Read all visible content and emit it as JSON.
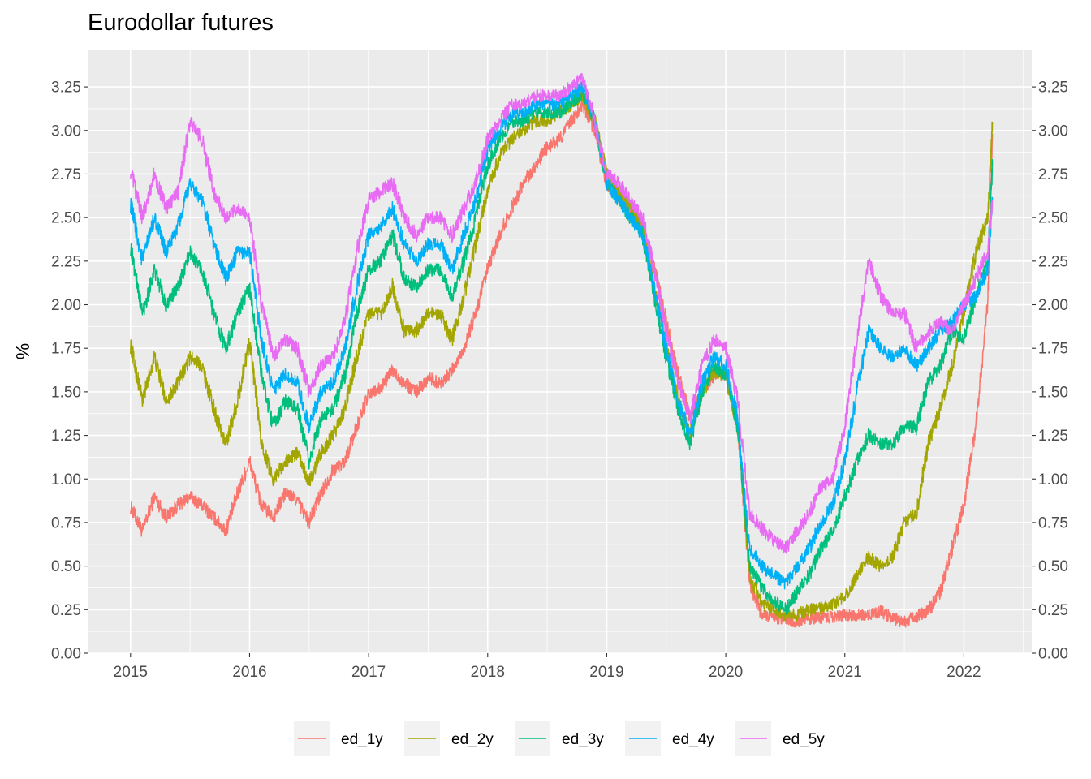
{
  "chart_data": {
    "type": "line",
    "title": "Eurodollar futures",
    "xlabel": "",
    "ylabel": "%",
    "x_ticks": [
      "2015",
      "2016",
      "2017",
      "2018",
      "2019",
      "2020",
      "2021",
      "2022"
    ],
    "y_ticks": [
      "0.00",
      "0.25",
      "0.50",
      "0.75",
      "1.00",
      "1.25",
      "1.50",
      "1.75",
      "2.00",
      "2.25",
      "2.50",
      "2.75",
      "3.00",
      "3.25"
    ],
    "xlim": [
      2014.64,
      2022.57
    ],
    "ylim": [
      0,
      3.46
    ],
    "grid": true,
    "secondary_y_axis": true,
    "legend_position": "bottom",
    "x": [
      2015.0,
      2015.1,
      2015.2,
      2015.3,
      2015.4,
      2015.5,
      2015.6,
      2015.7,
      2015.8,
      2015.9,
      2016.0,
      2016.1,
      2016.2,
      2016.3,
      2016.4,
      2016.5,
      2016.6,
      2016.7,
      2016.8,
      2016.9,
      2017.0,
      2017.1,
      2017.2,
      2017.3,
      2017.4,
      2017.5,
      2017.6,
      2017.7,
      2017.8,
      2017.9,
      2018.0,
      2018.1,
      2018.2,
      2018.3,
      2018.4,
      2018.5,
      2018.6,
      2018.7,
      2018.8,
      2018.9,
      2019.0,
      2019.1,
      2019.2,
      2019.3,
      2019.4,
      2019.5,
      2019.6,
      2019.7,
      2019.8,
      2019.9,
      2020.0,
      2020.1,
      2020.2,
      2020.3,
      2020.4,
      2020.5,
      2020.6,
      2020.7,
      2020.8,
      2020.9,
      2021.0,
      2021.1,
      2021.2,
      2021.3,
      2021.4,
      2021.5,
      2021.6,
      2021.7,
      2021.8,
      2021.9,
      2022.0,
      2022.1,
      2022.2,
      2022.24
    ],
    "series": [
      {
        "name": "ed_1y",
        "color": "#F8766D",
        "values": [
          0.84,
          0.7,
          0.9,
          0.78,
          0.85,
          0.9,
          0.85,
          0.78,
          0.7,
          0.92,
          1.1,
          0.85,
          0.78,
          0.92,
          0.88,
          0.75,
          0.92,
          1.05,
          1.1,
          1.3,
          1.48,
          1.52,
          1.62,
          1.55,
          1.5,
          1.58,
          1.55,
          1.62,
          1.75,
          1.95,
          2.2,
          2.4,
          2.55,
          2.7,
          2.8,
          2.9,
          2.95,
          3.05,
          3.15,
          3.0,
          2.7,
          2.6,
          2.55,
          2.45,
          2.2,
          1.9,
          1.6,
          1.35,
          1.5,
          1.6,
          1.6,
          1.3,
          0.4,
          0.22,
          0.2,
          0.2,
          0.18,
          0.2,
          0.2,
          0.21,
          0.22,
          0.22,
          0.22,
          0.24,
          0.2,
          0.18,
          0.21,
          0.24,
          0.35,
          0.6,
          0.85,
          1.3,
          2.0,
          2.98
        ]
      },
      {
        "name": "ed_2y",
        "color": "#A3A500",
        "values": [
          1.77,
          1.45,
          1.7,
          1.45,
          1.55,
          1.7,
          1.65,
          1.4,
          1.2,
          1.45,
          1.8,
          1.2,
          1.0,
          1.1,
          1.15,
          0.98,
          1.15,
          1.25,
          1.4,
          1.7,
          1.95,
          1.95,
          2.1,
          1.85,
          1.85,
          1.95,
          1.95,
          1.8,
          2.05,
          2.35,
          2.65,
          2.85,
          2.95,
          3.0,
          3.05,
          3.05,
          3.1,
          3.15,
          3.2,
          3.05,
          2.75,
          2.65,
          2.55,
          2.45,
          2.1,
          1.75,
          1.45,
          1.25,
          1.5,
          1.6,
          1.6,
          1.3,
          0.45,
          0.28,
          0.25,
          0.22,
          0.22,
          0.25,
          0.26,
          0.28,
          0.32,
          0.45,
          0.55,
          0.5,
          0.55,
          0.75,
          0.8,
          1.2,
          1.4,
          1.65,
          1.95,
          2.3,
          2.5,
          3.05
        ]
      },
      {
        "name": "ed_3y",
        "color": "#00BF7D",
        "values": [
          2.33,
          1.95,
          2.2,
          2.0,
          2.1,
          2.3,
          2.2,
          1.95,
          1.75,
          1.95,
          2.1,
          1.6,
          1.3,
          1.45,
          1.4,
          1.1,
          1.35,
          1.4,
          1.6,
          1.95,
          2.2,
          2.25,
          2.4,
          2.15,
          2.1,
          2.2,
          2.2,
          2.05,
          2.25,
          2.5,
          2.8,
          2.95,
          3.05,
          3.05,
          3.1,
          3.1,
          3.1,
          3.15,
          3.22,
          3.05,
          2.7,
          2.6,
          2.5,
          2.4,
          2.05,
          1.7,
          1.4,
          1.2,
          1.5,
          1.65,
          1.6,
          1.3,
          0.5,
          0.38,
          0.3,
          0.25,
          0.35,
          0.45,
          0.6,
          0.7,
          0.9,
          1.1,
          1.25,
          1.2,
          1.2,
          1.3,
          1.3,
          1.55,
          1.65,
          1.85,
          1.8,
          2.05,
          2.25,
          2.8
        ]
      },
      {
        "name": "ed_4y",
        "color": "#00B0F6",
        "values": [
          2.58,
          2.25,
          2.5,
          2.3,
          2.45,
          2.7,
          2.6,
          2.35,
          2.15,
          2.3,
          2.3,
          1.8,
          1.5,
          1.6,
          1.55,
          1.3,
          1.5,
          1.55,
          1.75,
          2.1,
          2.4,
          2.45,
          2.55,
          2.35,
          2.25,
          2.35,
          2.35,
          2.2,
          2.4,
          2.6,
          2.9,
          3.0,
          3.1,
          3.1,
          3.15,
          3.15,
          3.15,
          3.2,
          3.25,
          3.05,
          2.7,
          2.6,
          2.5,
          2.4,
          2.1,
          1.75,
          1.45,
          1.25,
          1.55,
          1.7,
          1.65,
          1.35,
          0.6,
          0.5,
          0.45,
          0.4,
          0.5,
          0.6,
          0.75,
          0.85,
          1.1,
          1.5,
          1.85,
          1.75,
          1.7,
          1.75,
          1.65,
          1.75,
          1.85,
          1.9,
          2.0,
          2.05,
          2.2,
          2.6
        ]
      },
      {
        "name": "ed_5y",
        "color": "#E76BF3",
        "values": [
          2.77,
          2.5,
          2.75,
          2.55,
          2.65,
          3.05,
          2.95,
          2.65,
          2.5,
          2.55,
          2.5,
          2.0,
          1.7,
          1.8,
          1.75,
          1.5,
          1.65,
          1.7,
          1.9,
          2.3,
          2.6,
          2.65,
          2.7,
          2.5,
          2.4,
          2.5,
          2.5,
          2.4,
          2.55,
          2.7,
          2.95,
          3.05,
          3.15,
          3.15,
          3.2,
          3.2,
          3.2,
          3.25,
          3.3,
          3.05,
          2.75,
          2.7,
          2.6,
          2.5,
          2.2,
          1.85,
          1.55,
          1.35,
          1.65,
          1.8,
          1.75,
          1.45,
          0.8,
          0.72,
          0.65,
          0.6,
          0.7,
          0.8,
          0.95,
          1.0,
          1.3,
          1.8,
          2.25,
          2.05,
          1.95,
          1.95,
          1.75,
          1.85,
          1.9,
          1.85,
          2.0,
          2.15,
          2.3,
          2.6
        ]
      }
    ]
  }
}
